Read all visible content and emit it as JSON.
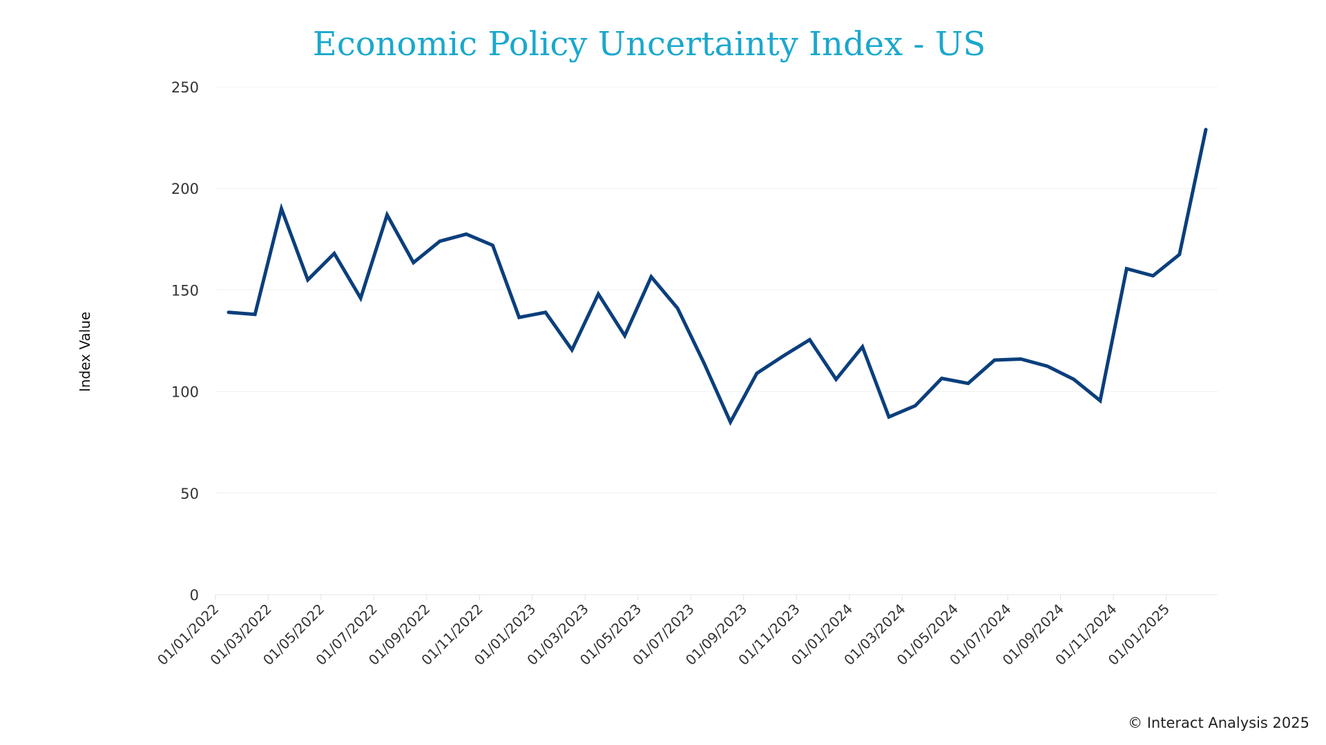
{
  "chart_data": {
    "type": "line",
    "title": "Economic Policy Uncertainty Index - US",
    "xlabel": "",
    "ylabel": "Index Value",
    "ylim": [
      0,
      250
    ],
    "yticks": [
      0,
      50,
      100,
      150,
      200,
      250
    ],
    "grid": true,
    "line_color": "#0b3f7c",
    "title_color": "#1aa8cc",
    "xtick_labels": [
      "01/01/2022",
      "01/03/2022",
      "01/05/2022",
      "01/07/2022",
      "01/09/2022",
      "01/11/2022",
      "01/01/2023",
      "01/03/2023",
      "01/05/2023",
      "01/07/2023",
      "01/09/2023",
      "01/11/2023",
      "01/01/2024",
      "01/03/2024",
      "01/05/2024",
      "01/07/2024",
      "01/09/2024",
      "01/11/2024",
      "01/01/2025"
    ],
    "x": [
      "2022-01",
      "2022-02",
      "2022-03",
      "2022-04",
      "2022-05",
      "2022-06",
      "2022-07",
      "2022-08",
      "2022-09",
      "2022-10",
      "2022-11",
      "2022-12",
      "2023-01",
      "2023-02",
      "2023-03",
      "2023-04",
      "2023-05",
      "2023-06",
      "2023-07",
      "2023-08",
      "2023-09",
      "2023-10",
      "2023-11",
      "2023-12",
      "2024-01",
      "2024-02",
      "2024-03",
      "2024-04",
      "2024-05",
      "2024-06",
      "2024-07",
      "2024-08",
      "2024-09",
      "2024-10",
      "2024-11",
      "2024-12",
      "2025-01",
      "2025-02"
    ],
    "values": [
      139,
      138,
      190,
      155,
      168,
      146,
      187,
      163.5,
      174,
      177.5,
      172,
      136.5,
      139,
      120.5,
      148,
      127.5,
      156.5,
      141,
      114,
      85,
      109,
      117.5,
      125.5,
      106,
      122,
      87.5,
      93,
      106.5,
      104,
      115.5,
      116,
      112.5,
      106,
      95.5,
      160.5,
      157,
      167.5,
      229
    ]
  },
  "footer": {
    "credit": "© Interact Analysis 2025"
  }
}
